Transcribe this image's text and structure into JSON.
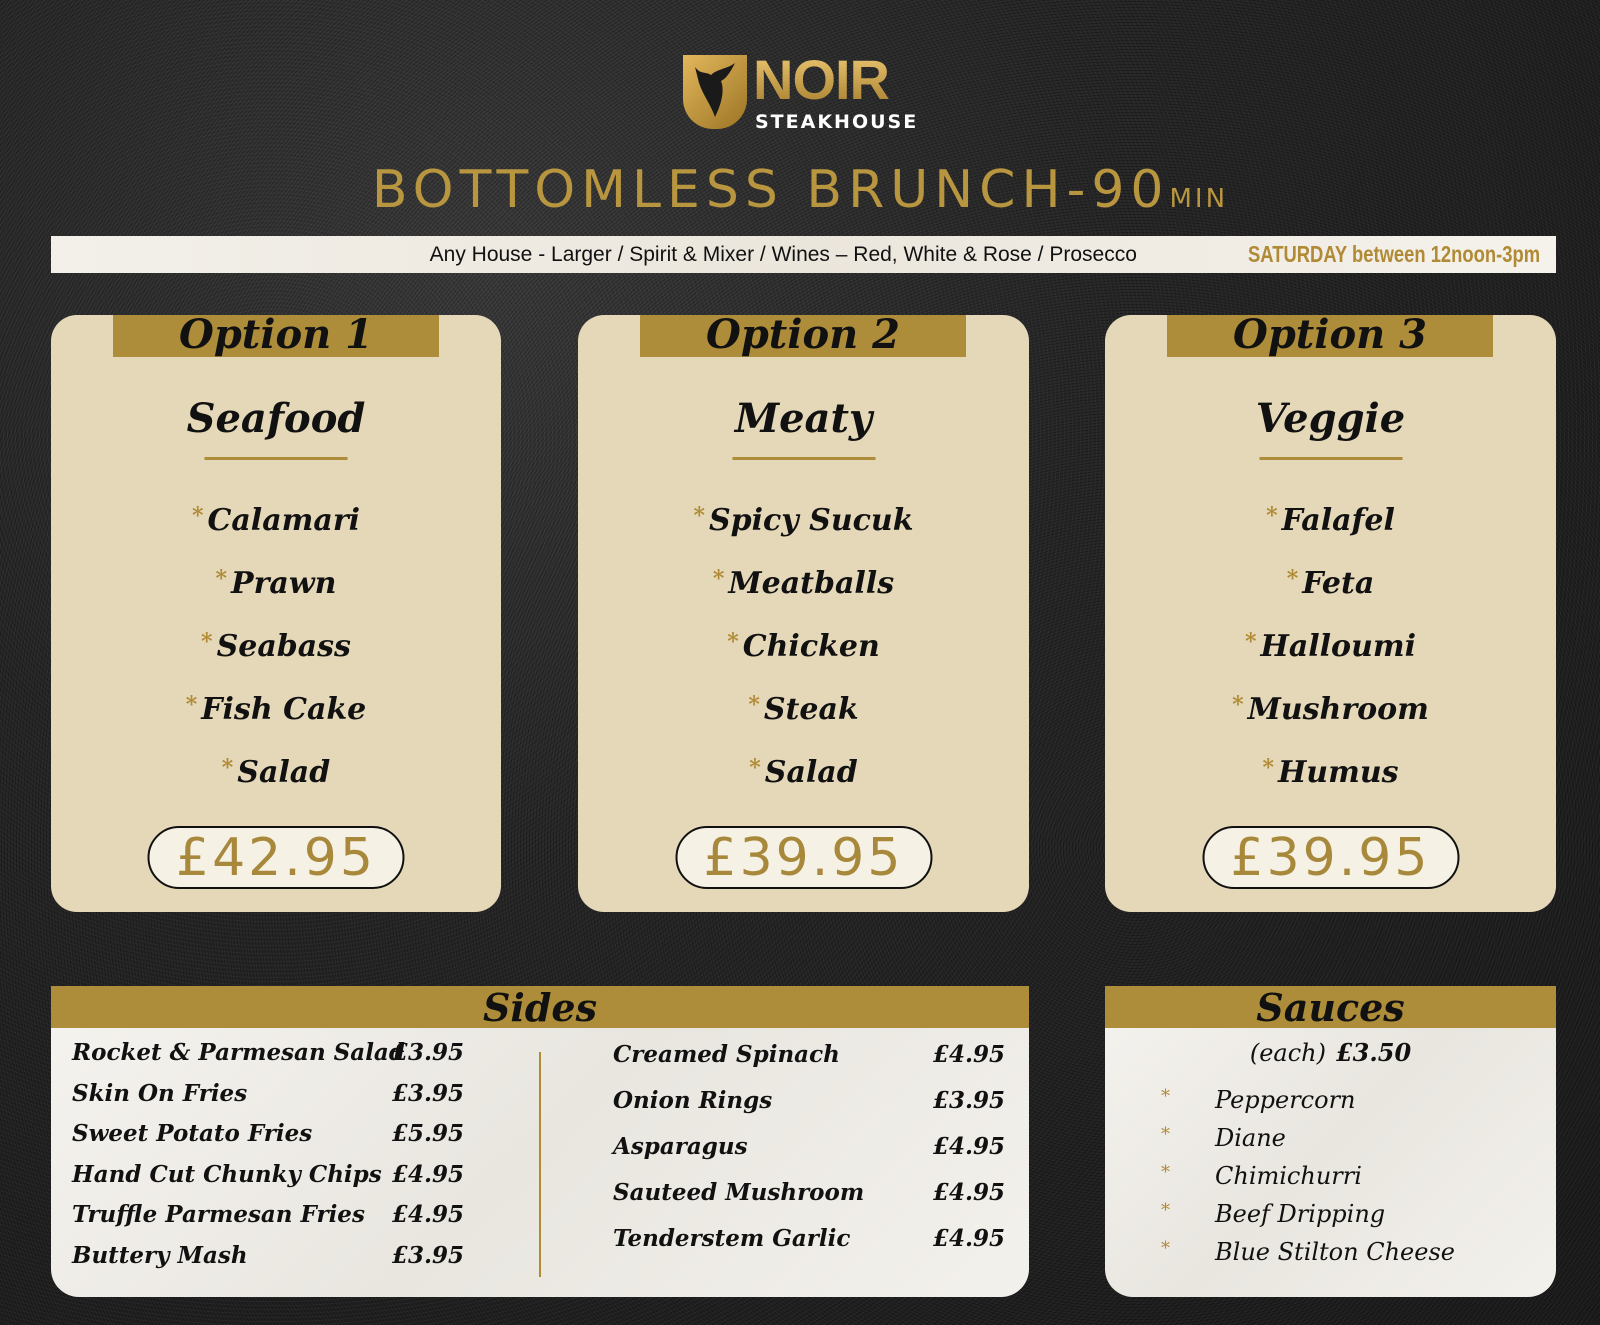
{
  "brand": {
    "name": "NOIR",
    "subtitle": "STEAKHOUSE"
  },
  "title": {
    "main": "BOTTOMLESS BRUNCH-90",
    "unit": "MIN"
  },
  "banner": {
    "drinks": "Any House - Larger / Spirit & Mixer / Wines – Red, White & Rose / Prosecco",
    "when": "SATURDAY between 12noon-3pm"
  },
  "options": [
    {
      "label": "Option 1",
      "category": "Seafood",
      "items": [
        "Calamari",
        "Prawn",
        "Seabass",
        "Fish Cake",
        "Salad"
      ],
      "price": "£42.95"
    },
    {
      "label": "Option 2",
      "category": "Meaty",
      "items": [
        "Spicy Sucuk",
        "Meatballs",
        "Chicken",
        "Steak",
        "Salad"
      ],
      "price": "£39.95"
    },
    {
      "label": "Option 3",
      "category": "Veggie",
      "items": [
        "Falafel",
        "Feta",
        "Halloumi",
        "Mushroom",
        "Humus"
      ],
      "price": "£39.95"
    }
  ],
  "sides": {
    "title": "Sides",
    "left": [
      {
        "name": "Rocket & Parmesan Salad",
        "price": "£3.95"
      },
      {
        "name": "Skin On Fries",
        "price": "£3.95"
      },
      {
        "name": "Sweet Potato Fries",
        "price": "£5.95"
      },
      {
        "name": "Hand Cut Chunky Chips",
        "price": "£4.95"
      },
      {
        "name": "Truffle Parmesan Fries",
        "price": "£4.95"
      },
      {
        "name": "Buttery Mash",
        "price": "£3.95"
      }
    ],
    "right": [
      {
        "name": "Creamed Spinach",
        "price": "£4.95"
      },
      {
        "name": "Onion Rings",
        "price": "£3.95"
      },
      {
        "name": "Asparagus",
        "price": "£4.95"
      },
      {
        "name": "Sauteed Mushroom",
        "price": "£4.95"
      },
      {
        "name": "Tenderstem Garlic",
        "price": "£4.95"
      }
    ]
  },
  "sauces": {
    "title": "Sauces",
    "each_label": "(each)",
    "each_price": "£3.50",
    "items": [
      "Peppercorn",
      "Diane",
      "Chimichurri",
      "Beef Dripping",
      "Blue Stilton Cheese"
    ]
  },
  "colors": {
    "gold": "#ad8c3a",
    "card": "#e5d8b9",
    "background": "#262626"
  }
}
